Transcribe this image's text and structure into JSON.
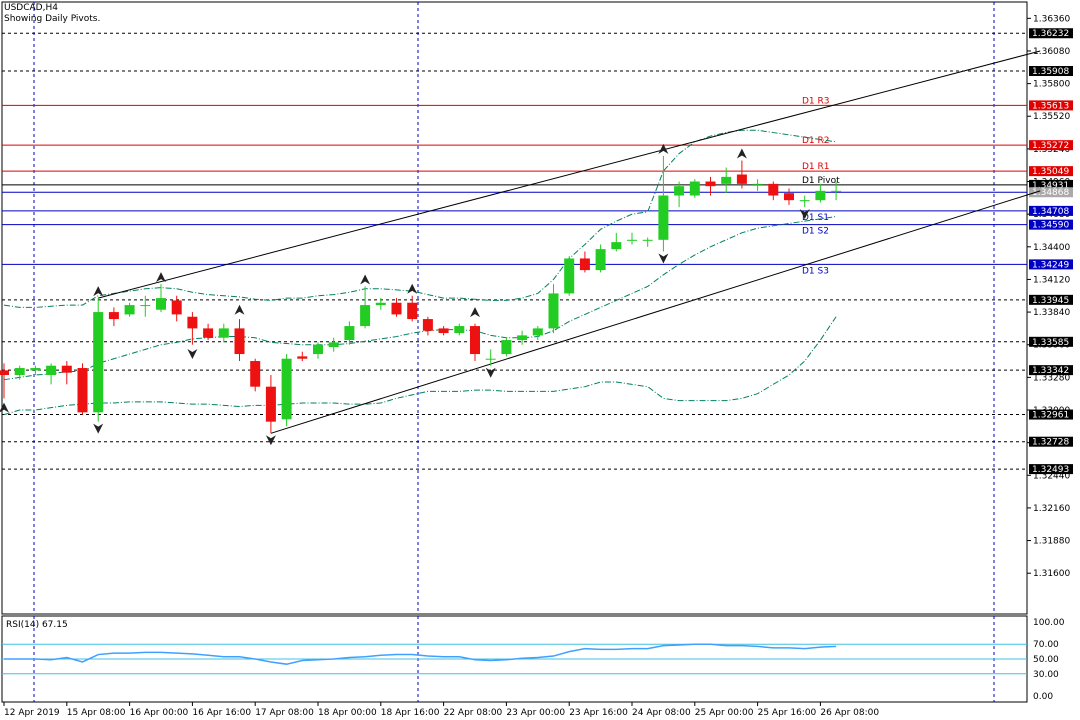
{
  "header": {
    "symbol": "USDCAD,H4",
    "subtitle": "Showing Daily Pivots."
  },
  "chart_data": {
    "type": "candlestick",
    "ylim": [
      1.3125,
      1.365
    ],
    "y_ticks": [
      1.3636,
      1.3608,
      1.358,
      1.3552,
      1.3524,
      1.3496,
      1.3468,
      1.344,
      1.3412,
      1.3384,
      1.3356,
      1.3328,
      1.33,
      1.3272,
      1.3244,
      1.3216,
      1.3188,
      1.316
    ],
    "x_ticks": [
      {
        "label": "12 Apr 2019",
        "bar": 0
      },
      {
        "label": "15 Apr 08:00",
        "bar": 4
      },
      {
        "label": "16 Apr 00:00",
        "bar": 8
      },
      {
        "label": "16 Apr 16:00",
        "bar": 12
      },
      {
        "label": "17 Apr 08:00",
        "bar": 16
      },
      {
        "label": "18 Apr 00:00",
        "bar": 20
      },
      {
        "label": "18 Apr 16:00",
        "bar": 24
      },
      {
        "label": "22 Apr 08:00",
        "bar": 28
      },
      {
        "label": "23 Apr 00:00",
        "bar": 32
      },
      {
        "label": "23 Apr 16:00",
        "bar": 36
      },
      {
        "label": "24 Apr 08:00",
        "bar": 40
      },
      {
        "label": "25 Apr 00:00",
        "bar": 44
      },
      {
        "label": "25 Apr 16:00",
        "bar": 48
      },
      {
        "label": "26 Apr 08:00",
        "bar": 52
      }
    ],
    "candles": [
      {
        "o": 1.3334,
        "h": 1.334,
        "l": 1.331,
        "c": 1.333
      },
      {
        "o": 1.333,
        "h": 1.3338,
        "l": 1.3326,
        "c": 1.3336
      },
      {
        "o": 1.3334,
        "h": 1.3338,
        "l": 1.333,
        "c": 1.3336
      },
      {
        "o": 1.333,
        "h": 1.334,
        "l": 1.3322,
        "c": 1.3338
      },
      {
        "o": 1.3338,
        "h": 1.3342,
        "l": 1.3322,
        "c": 1.3332
      },
      {
        "o": 1.3336,
        "h": 1.334,
        "l": 1.3296,
        "c": 1.3298
      },
      {
        "o": 1.3298,
        "h": 1.3396,
        "l": 1.329,
        "c": 1.3384
      },
      {
        "o": 1.3384,
        "h": 1.3388,
        "l": 1.3372,
        "c": 1.3378
      },
      {
        "o": 1.3382,
        "h": 1.3392,
        "l": 1.338,
        "c": 1.339
      },
      {
        "o": 1.339,
        "h": 1.3398,
        "l": 1.338,
        "c": 1.339
      },
      {
        "o": 1.3386,
        "h": 1.3408,
        "l": 1.3384,
        "c": 1.3396
      },
      {
        "o": 1.3394,
        "h": 1.3398,
        "l": 1.3376,
        "c": 1.3382
      },
      {
        "o": 1.338,
        "h": 1.3384,
        "l": 1.3356,
        "c": 1.337
      },
      {
        "o": 1.337,
        "h": 1.3374,
        "l": 1.336,
        "c": 1.3362
      },
      {
        "o": 1.3362,
        "h": 1.3374,
        "l": 1.3358,
        "c": 1.337
      },
      {
        "o": 1.337,
        "h": 1.3378,
        "l": 1.3342,
        "c": 1.3348
      },
      {
        "o": 1.3342,
        "h": 1.3344,
        "l": 1.3316,
        "c": 1.332
      },
      {
        "o": 1.332,
        "h": 1.333,
        "l": 1.328,
        "c": 1.329
      },
      {
        "o": 1.3292,
        "h": 1.3348,
        "l": 1.3286,
        "c": 1.3344
      },
      {
        "o": 1.3346,
        "h": 1.335,
        "l": 1.3342,
        "c": 1.3344
      },
      {
        "o": 1.3348,
        "h": 1.3358,
        "l": 1.3344,
        "c": 1.3356
      },
      {
        "o": 1.3354,
        "h": 1.3362,
        "l": 1.335,
        "c": 1.3358
      },
      {
        "o": 1.336,
        "h": 1.3376,
        "l": 1.3356,
        "c": 1.3372
      },
      {
        "o": 1.3372,
        "h": 1.3406,
        "l": 1.337,
        "c": 1.339
      },
      {
        "o": 1.339,
        "h": 1.3396,
        "l": 1.3386,
        "c": 1.3392
      },
      {
        "o": 1.3392,
        "h": 1.3396,
        "l": 1.338,
        "c": 1.3382
      },
      {
        "o": 1.3392,
        "h": 1.3398,
        "l": 1.3376,
        "c": 1.3378
      },
      {
        "o": 1.3378,
        "h": 1.338,
        "l": 1.3364,
        "c": 1.3368
      },
      {
        "o": 1.337,
        "h": 1.3372,
        "l": 1.3364,
        "c": 1.3366
      },
      {
        "o": 1.3366,
        "h": 1.3374,
        "l": 1.3364,
        "c": 1.3372
      },
      {
        "o": 1.3372,
        "h": 1.3374,
        "l": 1.3342,
        "c": 1.3348
      },
      {
        "o": 1.3344,
        "h": 1.3352,
        "l": 1.3338,
        "c": 1.3344
      },
      {
        "o": 1.3348,
        "h": 1.3362,
        "l": 1.3346,
        "c": 1.336
      },
      {
        "o": 1.336,
        "h": 1.3368,
        "l": 1.3356,
        "c": 1.3364
      },
      {
        "o": 1.3364,
        "h": 1.3372,
        "l": 1.336,
        "c": 1.337
      },
      {
        "o": 1.337,
        "h": 1.3408,
        "l": 1.3366,
        "c": 1.34
      },
      {
        "o": 1.34,
        "h": 1.3432,
        "l": 1.3398,
        "c": 1.343
      },
      {
        "o": 1.343,
        "h": 1.3436,
        "l": 1.3418,
        "c": 1.342
      },
      {
        "o": 1.342,
        "h": 1.3442,
        "l": 1.3418,
        "c": 1.3438
      },
      {
        "o": 1.3438,
        "h": 1.3452,
        "l": 1.3436,
        "c": 1.3444
      },
      {
        "o": 1.3446,
        "h": 1.3452,
        "l": 1.3442,
        "c": 1.3446
      },
      {
        "o": 1.3446,
        "h": 1.3448,
        "l": 1.344,
        "c": 1.3446
      },
      {
        "o": 1.3446,
        "h": 1.3518,
        "l": 1.3436,
        "c": 1.3484
      },
      {
        "o": 1.3484,
        "h": 1.3496,
        "l": 1.3474,
        "c": 1.3492
      },
      {
        "o": 1.3484,
        "h": 1.3498,
        "l": 1.3482,
        "c": 1.3496
      },
      {
        "o": 1.3496,
        "h": 1.35,
        "l": 1.3484,
        "c": 1.3492
      },
      {
        "o": 1.3494,
        "h": 1.3508,
        "l": 1.3486,
        "c": 1.35
      },
      {
        "o": 1.3502,
        "h": 1.3514,
        "l": 1.349,
        "c": 1.3494
      },
      {
        "o": 1.3494,
        "h": 1.3498,
        "l": 1.3488,
        "c": 1.3494
      },
      {
        "o": 1.3494,
        "h": 1.3496,
        "l": 1.348,
        "c": 1.3484
      },
      {
        "o": 1.3486,
        "h": 1.349,
        "l": 1.3476,
        "c": 1.348
      },
      {
        "o": 1.348,
        "h": 1.3484,
        "l": 1.3474,
        "c": 1.348
      },
      {
        "o": 1.348,
        "h": 1.3494,
        "l": 1.3478,
        "c": 1.3488
      },
      {
        "o": 1.3488,
        "h": 1.3496,
        "l": 1.348,
        "c": 1.3488
      }
    ],
    "price_levels": [
      {
        "value": 1.36232,
        "label": "1.36232",
        "style": "dash",
        "color": "#000000",
        "box": "#000000"
      },
      {
        "value": 1.35908,
        "label": "1.35908",
        "style": "dash",
        "color": "#000000",
        "box": "#000000"
      },
      {
        "value": 1.35613,
        "label": "1.35613",
        "style": "solid",
        "color": "#e00000",
        "box": "#e00000"
      },
      {
        "value": 1.35272,
        "label": "1.35272",
        "style": "solid",
        "color": "#e00000",
        "box": "#e00000"
      },
      {
        "value": 1.35049,
        "label": "1.35049",
        "style": "solid",
        "color": "#e00000",
        "box": "#e00000"
      },
      {
        "value": 1.34931,
        "label": "1.34931",
        "style": "solid",
        "color": "#000000",
        "box": "#000000"
      },
      {
        "value": 1.34868,
        "label": "1.34868",
        "style": "solid",
        "color": "#0000c0",
        "box": "#aaaaaa"
      },
      {
        "value": 1.34708,
        "label": "1.34708",
        "style": "solid",
        "color": "#0000c0",
        "box": "#0000c0"
      },
      {
        "value": 1.3459,
        "label": "1.34590",
        "style": "solid",
        "color": "#0000c0",
        "box": "#0000c0"
      },
      {
        "value": 1.34249,
        "label": "1.34249",
        "style": "solid",
        "color": "#0000c0",
        "box": "#0000c0"
      },
      {
        "value": 1.33945,
        "label": "1.33945",
        "style": "dash",
        "color": "#000000",
        "box": "#000000"
      },
      {
        "value": 1.33585,
        "label": "1.33585",
        "style": "dash",
        "color": "#000000",
        "box": "#000000"
      },
      {
        "value": 1.33342,
        "label": "1.33342",
        "style": "dash",
        "color": "#000000",
        "box": "#000000"
      },
      {
        "value": 1.32961,
        "label": "1.32961",
        "style": "dash",
        "color": "#000000",
        "box": "#000000"
      },
      {
        "value": 1.32728,
        "label": "1.32728",
        "style": "dash",
        "color": "#000000",
        "box": "#000000"
      },
      {
        "value": 1.32493,
        "label": "1.32493",
        "style": "dash",
        "color": "#000000",
        "box": "#000000"
      }
    ],
    "pivot_labels": [
      {
        "text": "D1 R3",
        "value": 1.35613,
        "color": "red"
      },
      {
        "text": "D1 R2",
        "value": 1.35272,
        "color": "red"
      },
      {
        "text": "D1 R1",
        "value": 1.35049,
        "color": "red"
      },
      {
        "text": "D1 Pivot",
        "value": 1.34931,
        "color": "black"
      },
      {
        "text": "D1 S1",
        "value": 1.34708,
        "color": "blue"
      },
      {
        "text": "D1 S2",
        "value": 1.3459,
        "color": "blue"
      },
      {
        "text": "D1 S3",
        "value": 1.34249,
        "color": "blue"
      }
    ],
    "trend_lines": [
      {
        "from": {
          "bar": 6,
          "price": 1.3396
        },
        "to": {
          "bar": 66,
          "price": 1.3608
        }
      },
      {
        "from": {
          "bar": 17,
          "price": 1.328
        },
        "to": {
          "bar": 66,
          "price": 1.3488
        }
      }
    ],
    "bollinger": {
      "upper": [
        1.339,
        1.3388,
        1.3388,
        1.3389,
        1.339,
        1.339,
        1.3398,
        1.34,
        1.3402,
        1.3404,
        1.3405,
        1.3404,
        1.3401,
        1.3399,
        1.3398,
        1.3397,
        1.3395,
        1.3394,
        1.3396,
        1.3396,
        1.3398,
        1.3399,
        1.3401,
        1.3404,
        1.3404,
        1.3403,
        1.3402,
        1.3399,
        1.3396,
        1.3396,
        1.3395,
        1.3394,
        1.3394,
        1.3396,
        1.34,
        1.3412,
        1.343,
        1.3442,
        1.3455,
        1.3462,
        1.3468,
        1.347,
        1.3505,
        1.352,
        1.353,
        1.3535,
        1.3538,
        1.354,
        1.354,
        1.3538,
        1.3536,
        1.3534,
        1.3532,
        1.353
      ],
      "middle": [
        1.3326,
        1.3328,
        1.333,
        1.3331,
        1.3333,
        1.3333,
        1.334,
        1.3344,
        1.3348,
        1.3352,
        1.3356,
        1.3358,
        1.3361,
        1.3362,
        1.3363,
        1.3363,
        1.3362,
        1.3358,
        1.3357,
        1.3356,
        1.3356,
        1.3356,
        1.3357,
        1.3359,
        1.3361,
        1.3363,
        1.3366,
        1.3368,
        1.3369,
        1.3369,
        1.3368,
        1.3364,
        1.3362,
        1.3362,
        1.3363,
        1.3368,
        1.3376,
        1.3382,
        1.3388,
        1.3394,
        1.34,
        1.3406,
        1.3416,
        1.3425,
        1.3433,
        1.344,
        1.3446,
        1.3452,
        1.3456,
        1.3458,
        1.346,
        1.3462,
        1.3464,
        1.3466
      ],
      "lower": [
        1.3296,
        1.33,
        1.33,
        1.3302,
        1.3304,
        1.3305,
        1.3306,
        1.3306,
        1.3307,
        1.3307,
        1.3307,
        1.3306,
        1.3305,
        1.3305,
        1.3304,
        1.3303,
        1.3304,
        1.3304,
        1.3305,
        1.3306,
        1.3306,
        1.3306,
        1.3305,
        1.3305,
        1.3306,
        1.331,
        1.3313,
        1.3316,
        1.3316,
        1.3316,
        1.3317,
        1.3317,
        1.3316,
        1.3316,
        1.3316,
        1.3316,
        1.3318,
        1.332,
        1.3324,
        1.3324,
        1.3322,
        1.332,
        1.331,
        1.3308,
        1.3308,
        1.3308,
        1.3308,
        1.331,
        1.3314,
        1.3322,
        1.333,
        1.3342,
        1.336,
        1.338
      ]
    },
    "fractal_arrows": [
      {
        "bar": 0,
        "price": 1.3302,
        "dir": "up"
      },
      {
        "bar": 6,
        "price": 1.3402,
        "dir": "up"
      },
      {
        "bar": 10,
        "price": 1.3414,
        "dir": "up"
      },
      {
        "bar": 6,
        "price": 1.3284,
        "dir": "down"
      },
      {
        "bar": 12,
        "price": 1.3348,
        "dir": "down"
      },
      {
        "bar": 15,
        "price": 1.3386,
        "dir": "up"
      },
      {
        "bar": 17,
        "price": 1.3274,
        "dir": "down"
      },
      {
        "bar": 23,
        "price": 1.3412,
        "dir": "up"
      },
      {
        "bar": 26,
        "price": 1.3404,
        "dir": "up"
      },
      {
        "bar": 30,
        "price": 1.3384,
        "dir": "up"
      },
      {
        "bar": 31,
        "price": 1.3332,
        "dir": "down"
      },
      {
        "bar": 42,
        "price": 1.3524,
        "dir": "up"
      },
      {
        "bar": 42,
        "price": 1.343,
        "dir": "down"
      },
      {
        "bar": 47,
        "price": 1.352,
        "dir": "up"
      },
      {
        "bar": 51,
        "price": 1.3468,
        "dir": "down"
      }
    ],
    "rsi": {
      "label": "RSI(14) 67.15",
      "ylim": [
        0,
        100
      ],
      "levels": [
        70,
        50,
        30
      ],
      "ticks": [
        "100.00",
        "70.00",
        "50.00",
        "30.00",
        "0.00"
      ],
      "values": [
        50,
        50,
        50,
        49,
        52,
        46,
        56,
        58,
        58,
        59,
        59,
        58,
        57,
        55,
        53,
        53,
        50,
        46,
        43,
        48,
        49,
        50,
        52,
        53,
        55,
        56,
        56,
        54,
        53,
        53,
        49,
        48,
        49,
        51,
        52,
        54,
        60,
        64,
        63,
        63,
        64,
        64,
        68,
        69,
        70,
        70,
        68,
        68,
        67,
        65,
        65,
        64,
        66,
        67
      ]
    },
    "colors": {
      "bull": "#22cc22",
      "bear": "#ee1111",
      "axis": "#000000",
      "grid": "#0000c0",
      "bollinger": "#008060",
      "rsi_line": "#40a0ff",
      "rsi_level": "#40c0e0"
    }
  }
}
